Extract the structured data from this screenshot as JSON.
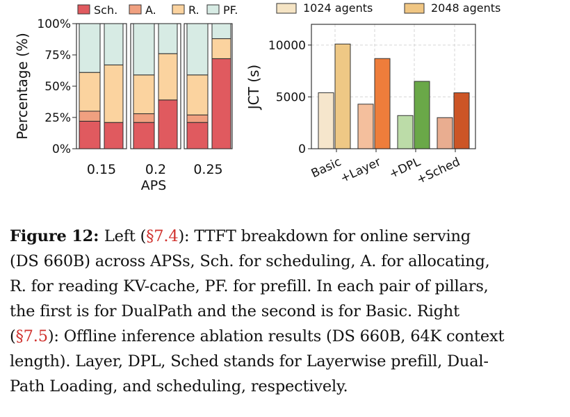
{
  "chart_data": [
    {
      "type": "bar",
      "stacked": true,
      "percent": true,
      "xlabel": "APS",
      "ylabel": "Percentage (%)",
      "ylim": [
        0,
        100
      ],
      "yticks": [
        "0%",
        "25%",
        "50%",
        "75%",
        "100%"
      ],
      "ytick_values": [
        0,
        25,
        50,
        75,
        100
      ],
      "groups": [
        "0.15",
        "0.2",
        "0.25"
      ],
      "legend": [
        {
          "name": "Sch.",
          "color": "#e05a5f"
        },
        {
          "name": "A.",
          "color": "#f0a080"
        },
        {
          "name": "R.",
          "color": "#fbd39f"
        },
        {
          "name": "PF.",
          "color": "#d7ebe4"
        }
      ],
      "legend_position": "top",
      "bars": [
        {
          "group": "0.15",
          "values": [
            22,
            8,
            31,
            39
          ]
        },
        {
          "group": "0.15",
          "values": [
            21,
            0,
            46,
            33
          ]
        },
        {
          "group": "0.2",
          "values": [
            21,
            7,
            31,
            41
          ]
        },
        {
          "group": "0.2",
          "values": [
            39,
            0,
            37,
            24
          ]
        },
        {
          "group": "0.25",
          "values": [
            21,
            6,
            32,
            41
          ]
        },
        {
          "group": "0.25",
          "values": [
            72,
            0,
            16,
            12
          ]
        }
      ]
    },
    {
      "type": "bar",
      "ylabel": "JCT (s)",
      "ylim": [
        0,
        12000
      ],
      "yticks": [
        "0",
        "5000",
        "10000"
      ],
      "ytick_values": [
        0,
        5000,
        10000
      ],
      "grid": true,
      "categories": [
        "Basic",
        "+Layer",
        "+DPL",
        "+Sched"
      ],
      "series": [
        {
          "name": "1024 agents",
          "values": [
            5400,
            4300,
            3200,
            3000
          ],
          "colors": [
            "#f6e6cc",
            "#f4bf9d",
            "#bcdca8",
            "#e9ad90"
          ]
        },
        {
          "name": "2048 agents",
          "values": [
            10100,
            8700,
            6500,
            5400
          ],
          "colors": [
            "#eec885",
            "#ee7d3b",
            "#6aa848",
            "#cc5526"
          ]
        }
      ],
      "legend_position": "top",
      "legend_colors": [
        "#f5e4c4",
        "#f0c683"
      ]
    }
  ],
  "caption": {
    "label": "Figure 12:",
    "lines": [
      [
        "Left (",
        "§7.4",
        "): TTFT breakdown for online serving"
      ],
      [
        "(DS 660B) across APSs, Sch. for scheduling, A. for allocating,"
      ],
      [
        "R. for reading KV-cache, PF. for prefill. In each pair of pillars,"
      ],
      [
        "the first is for DualPath and the second is for Basic. Right"
      ],
      [
        "(",
        "§7.5",
        "): Offline inference ablation results (DS 660B, 64K context"
      ],
      [
        "length). Layer, DPL, Sched stands for Layerwise prefill, Dual-"
      ],
      [
        "Path Loading, and scheduling, respectively."
      ]
    ]
  }
}
